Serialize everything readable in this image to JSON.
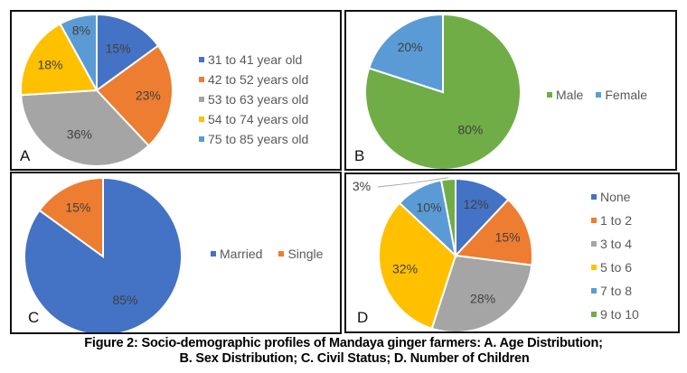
{
  "figure": {
    "caption_line1": "Figure 2: Socio-demographic profiles of Mandaya ginger farmers: A. Age Distribution;",
    "caption_line2": "B. Sex Distribution; C. Civil Status; D. Number of Children"
  },
  "chart_data": [
    {
      "id": "A",
      "type": "pie",
      "panel_letter": "A",
      "title": "Age Distribution",
      "categories": [
        "31 to 41 year old",
        "42 to 52 years old",
        "53 to 63 years old",
        "54 to 74 years old",
        "75 to 85 years old"
      ],
      "values": [
        15,
        23,
        36,
        18,
        8
      ],
      "labels": [
        "15%",
        "23%",
        "36%",
        "18%",
        "8%"
      ],
      "colors": [
        "#4472C4",
        "#ED7D31",
        "#A5A5A5",
        "#FFC000",
        "#5B9BD5"
      ],
      "legend": "right"
    },
    {
      "id": "B",
      "type": "pie",
      "panel_letter": "B",
      "title": "Sex Distribution",
      "categories": [
        "Male",
        "Female"
      ],
      "values": [
        80,
        20
      ],
      "labels": [
        "80%",
        "20%"
      ],
      "colors": [
        "#70AD47",
        "#5B9BD5"
      ],
      "legend": "right"
    },
    {
      "id": "C",
      "type": "pie",
      "panel_letter": "C",
      "title": "Civil Status",
      "categories": [
        "Married",
        "Single"
      ],
      "values": [
        85,
        15
      ],
      "labels": [
        "85%",
        "15%"
      ],
      "colors": [
        "#4472C4",
        "#ED7D31"
      ],
      "legend": "right"
    },
    {
      "id": "D",
      "type": "pie",
      "panel_letter": "D",
      "title": "Number of Children",
      "categories": [
        "None",
        "1 to 2",
        "3 to 4",
        "5 to 6",
        "7 to 8",
        "9 to 10"
      ],
      "values": [
        12,
        15,
        28,
        32,
        10,
        3
      ],
      "labels": [
        "12%",
        "15%",
        "28%",
        "32%",
        "10%",
        "3%"
      ],
      "colors": [
        "#4472C4",
        "#ED7D31",
        "#A5A5A5",
        "#FFC000",
        "#5B9BD5",
        "#70AD47"
      ],
      "legend": "right"
    }
  ]
}
